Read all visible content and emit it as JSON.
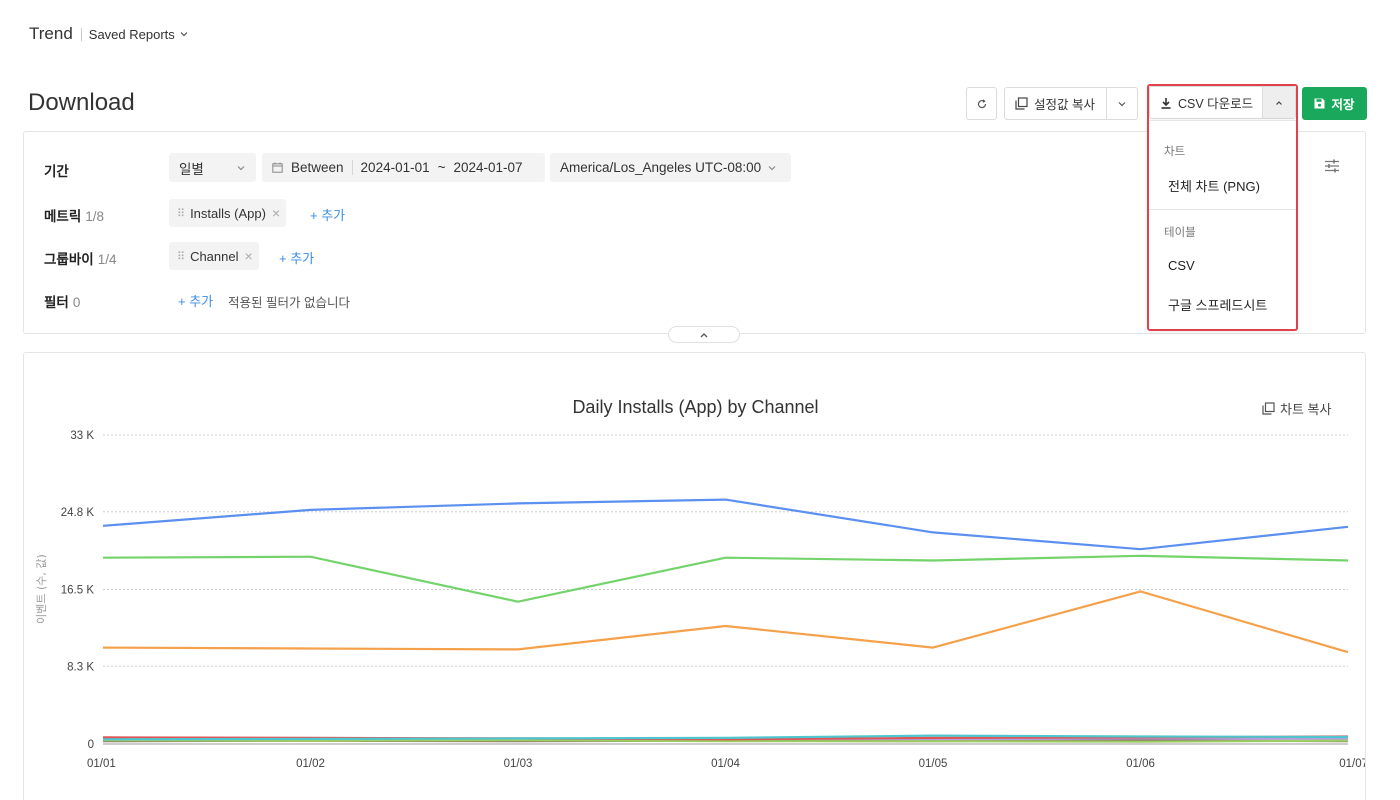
{
  "topbar": {
    "app": "Trend",
    "saved_reports": "Saved Reports"
  },
  "page": {
    "title": "Download"
  },
  "toolbar": {
    "copy_settings": "설정값 복사",
    "csv_download": "CSV 다운로드",
    "save": "저장"
  },
  "dropdown": {
    "section_chart": "차트",
    "item_full_chart": "전체 차트 (PNG)",
    "section_table": "테이블",
    "item_csv": "CSV",
    "item_gsheet": "구글 스프레드시트"
  },
  "filters": {
    "period": {
      "label": "기간",
      "granularity": "일별",
      "mode": "Between",
      "start": "2024-01-01",
      "tilde": "~",
      "end": "2024-01-07",
      "timezone": "America/Los_Angeles UTC-08:00"
    },
    "metric": {
      "label": "메트릭",
      "count": "1/8",
      "chip": "Installs (App)",
      "add": "+ 추가"
    },
    "groupby": {
      "label": "그룹바이",
      "count": "1/4",
      "chip": "Channel",
      "add": "+ 추가"
    },
    "filter": {
      "label": "필터",
      "count": "0",
      "add": "+ 추가",
      "empty": "적용된 필터가 없습니다"
    }
  },
  "chart_header": {
    "copy": "차트 복사"
  },
  "chart_data": {
    "type": "line",
    "title": "Daily Installs (App) by Channel",
    "ylabel": "이벤트 (수, 값)",
    "xlabel": "",
    "ylim": [
      0,
      33000
    ],
    "yticks": [
      {
        "value": 0,
        "label": "0"
      },
      {
        "value": 8300,
        "label": "8.3 K"
      },
      {
        "value": 16500,
        "label": "16.5 K"
      },
      {
        "value": 24800,
        "label": "24.8 K"
      },
      {
        "value": 33000,
        "label": "33 K"
      }
    ],
    "categories": [
      "01/01",
      "01/02",
      "01/03",
      "01/04",
      "01/05",
      "01/06",
      "01/07"
    ],
    "grid": true,
    "series": [
      {
        "color": "#5b8ff0",
        "values": [
          23300,
          25000,
          25700,
          26100,
          22600,
          20800,
          23200
        ]
      },
      {
        "color": "#74d36b",
        "values": [
          19900,
          20000,
          15200,
          19900,
          19600,
          20100,
          19600
        ]
      },
      {
        "color": "#f5a04a",
        "values": [
          10300,
          10200,
          10100,
          12600,
          10300,
          16300,
          9800
        ]
      },
      {
        "color": "#4fc6cf",
        "values": [
          500,
          550,
          600,
          650,
          900,
          800,
          750
        ]
      },
      {
        "color": "#e05454",
        "values": [
          700,
          650,
          600,
          500,
          650,
          700,
          800
        ]
      },
      {
        "color": "#9ccc65",
        "values": [
          400,
          350,
          400,
          300,
          300,
          250,
          350
        ]
      },
      {
        "color": "#b39ddb",
        "values": [
          600,
          500,
          500,
          600,
          500,
          600,
          550
        ]
      },
      {
        "color": "#8d6e63",
        "values": [
          300,
          350,
          300,
          350,
          300,
          400,
          300
        ]
      }
    ]
  }
}
